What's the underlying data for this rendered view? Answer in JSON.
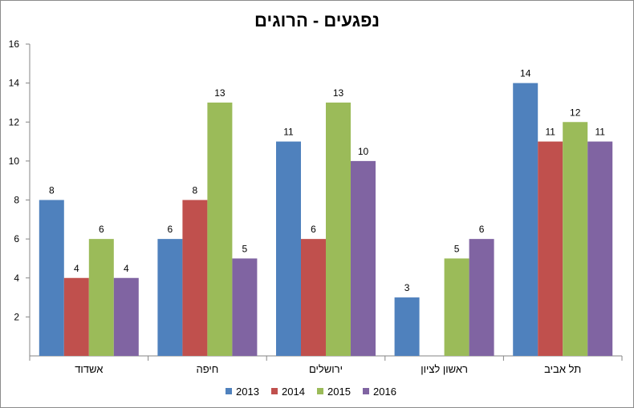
{
  "chart_data": {
    "type": "bar",
    "title": "נפגעים - הרוגים",
    "categories": [
      "אשדוד",
      "חיפה",
      "ירושלים",
      "ראשון לציון",
      "תל אביב"
    ],
    "series": [
      {
        "name": "2013",
        "color": "#4f81bd",
        "values": [
          8,
          6,
          11,
          3,
          14
        ]
      },
      {
        "name": "2014",
        "color": "#c0504d",
        "values": [
          4,
          8,
          6,
          null,
          11
        ]
      },
      {
        "name": "2015",
        "color": "#9bbb59",
        "values": [
          6,
          13,
          13,
          5,
          12
        ]
      },
      {
        "name": "2016",
        "color": "#8064a2",
        "values": [
          4,
          5,
          10,
          6,
          11
        ]
      }
    ],
    "ylim": [
      0,
      16
    ],
    "yticks": [
      2,
      4,
      6,
      8,
      10,
      12,
      14,
      16
    ],
    "xlabel": "",
    "ylabel": "",
    "grid": false,
    "legend": "bottom",
    "data_labels": true
  }
}
